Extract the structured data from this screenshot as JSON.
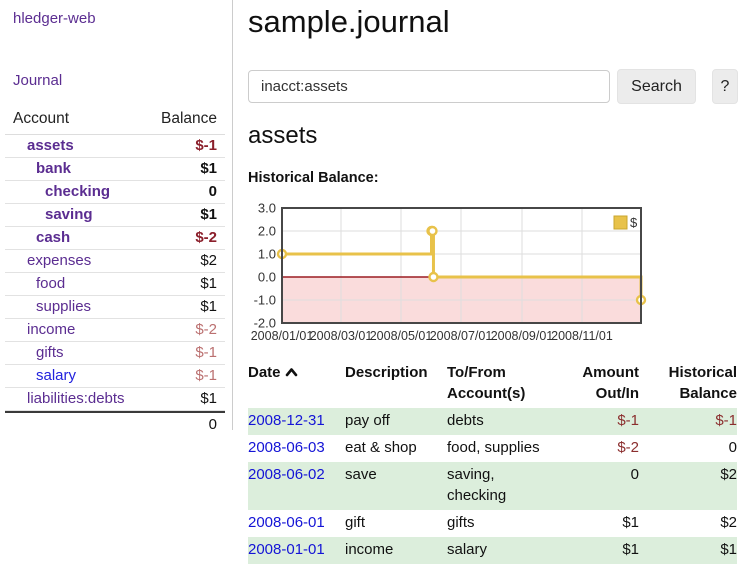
{
  "sidebar": {
    "app_title": "hledger-web",
    "journal_link": "Journal",
    "accounts_table": {
      "account_header": "Account",
      "balance_header": "Balance",
      "rows": [
        {
          "name": "assets",
          "balance": "$-1",
          "level": 1,
          "bold": true
        },
        {
          "name": "bank",
          "balance": "$1",
          "level": 2,
          "bold": true
        },
        {
          "name": "checking",
          "balance": "0",
          "level": 3,
          "bold": true
        },
        {
          "name": "saving",
          "balance": "$1",
          "level": 3,
          "bold": true
        },
        {
          "name": "cash",
          "balance": "$-2",
          "level": 2,
          "bold": true
        },
        {
          "name": "expenses",
          "balance": "$2",
          "level": 1,
          "bold": false
        },
        {
          "name": "food",
          "balance": "$1",
          "level": 2,
          "bold": false
        },
        {
          "name": "supplies",
          "balance": "$1",
          "level": 2,
          "bold": false
        },
        {
          "name": "income",
          "balance": "$-2",
          "level": 1,
          "bold": false
        },
        {
          "name": "gifts",
          "balance": "$-1",
          "level": 2,
          "bold": false
        },
        {
          "name": "salary",
          "balance": "$-1",
          "level": 2,
          "bold": false,
          "name_color": "blue"
        },
        {
          "name": "liabilities:debts",
          "balance": "$1",
          "level": 1,
          "bold": false
        }
      ],
      "total": "0"
    }
  },
  "header": {
    "title": "sample.journal"
  },
  "search": {
    "query": "inacct:assets",
    "clear_icon": "×",
    "search_button": "Search",
    "help_button": "?"
  },
  "account_page": {
    "heading": "assets",
    "chart_label": "Historical Balance:"
  },
  "chart_data": {
    "type": "line",
    "title": "Historical Balance",
    "step": true,
    "series": [
      {
        "name": "$",
        "x": [
          "2008-01-01",
          "2008-06-01",
          "2008-06-02",
          "2008-06-03",
          "2008-12-31"
        ],
        "y": [
          1,
          2,
          2,
          0,
          -1
        ]
      }
    ],
    "xlabel": "",
    "ylabel": "",
    "ylim": [
      -2,
      3
    ],
    "yticks": [
      "3.0",
      "2.0",
      "1.0",
      "0.0",
      "-1.0",
      "-2.0"
    ],
    "xticks": [
      "2008/01/01",
      "2008/03/01",
      "2008/05/01",
      "2008/07/01",
      "2008/09/01",
      "2008/11/01"
    ],
    "xrange": [
      "2008-01-01",
      "2008-12-31"
    ],
    "grid": true,
    "legend_position": "top-right",
    "legend": [
      "$"
    ],
    "colors": {
      "line": "#e8c24a",
      "marker_fill": "#ffffff",
      "negative_region": "#fadcdc",
      "zero_line": "#9b1c22",
      "gridline": "#dedede",
      "border": "#474747"
    }
  },
  "register_table": {
    "headers": {
      "date": "Date",
      "description": "Description",
      "accounts": "To/From Account(s)",
      "amount": "Amount Out/In",
      "balance": "Historical Balance"
    },
    "rows": [
      {
        "date": "2008-12-31",
        "description": "pay off",
        "accounts": "debts",
        "amount": "$-1",
        "balance": "$-1"
      },
      {
        "date": "2008-06-03",
        "description": "eat & shop",
        "accounts": "food, supplies",
        "amount": "$-2",
        "balance": "0"
      },
      {
        "date": "2008-06-02",
        "description": "save",
        "accounts": "saving, checking",
        "amount": "0",
        "balance": "$2"
      },
      {
        "date": "2008-06-01",
        "description": "gift",
        "accounts": "gifts",
        "amount": "$1",
        "balance": "$2"
      },
      {
        "date": "2008-01-01",
        "description": "income",
        "accounts": "salary",
        "amount": "$1",
        "balance": "$1"
      }
    ]
  }
}
